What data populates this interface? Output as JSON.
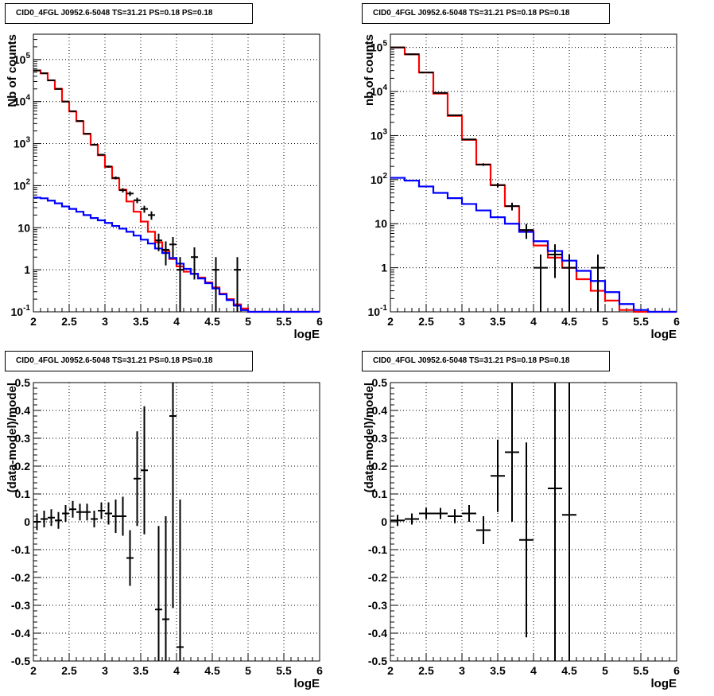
{
  "chart_data": [
    {
      "type": "line",
      "title": "CID0_4FGL J0952.6-5048 TS=31.21 PS=0.18 PS=0.18",
      "xlabel": "logE",
      "ylabel": "Nb of counts",
      "ylog": true,
      "xlim": [
        2,
        6
      ],
      "ylim": [
        0.1,
        400000
      ],
      "grid": true,
      "xticks": [
        "2",
        "2.5",
        "3",
        "3.5",
        "4",
        "4.5",
        "5",
        "5.5",
        "6"
      ],
      "yticks": [
        "10^-1",
        "1",
        "10",
        "10^2",
        "10^3",
        "10^4",
        "10^5"
      ],
      "colors": {
        "total_model": "#ff0000",
        "source_model": "#0000ff",
        "data": "#000000"
      },
      "series": [
        {
          "role": "total_model",
          "edges": [
            2.0,
            2.1,
            2.2,
            2.3,
            2.4,
            2.5,
            2.6,
            2.7,
            2.8,
            2.9,
            3.0,
            3.1,
            3.2,
            3.3,
            3.4,
            3.5,
            3.6,
            3.7,
            3.8,
            3.9,
            4.0,
            4.1,
            4.2,
            4.3,
            4.4,
            4.5,
            4.6,
            4.7,
            4.8,
            4.9,
            5.0,
            5.1,
            5.2,
            5.3,
            5.4,
            5.5,
            5.6,
            5.7,
            5.8,
            5.9,
            6.0
          ],
          "values": [
            55000,
            47000,
            32000,
            20000,
            10000,
            5800,
            3400,
            1700,
            940,
            530,
            280,
            150,
            80,
            42,
            24,
            14,
            8,
            4.5,
            2.8,
            1.8,
            1.2,
            0.9,
            0.8,
            0.65,
            0.5,
            0.38,
            0.27,
            0.2,
            0.15,
            0.12,
            0.1,
            0.1,
            0.1,
            0.1,
            0.1,
            0.1,
            0.1,
            0.1,
            0.1,
            0.1
          ]
        },
        {
          "role": "source_model",
          "edges": [
            2.0,
            2.1,
            2.2,
            2.3,
            2.4,
            2.5,
            2.6,
            2.7,
            2.8,
            2.9,
            3.0,
            3.1,
            3.2,
            3.3,
            3.4,
            3.5,
            3.6,
            3.7,
            3.8,
            3.9,
            4.0,
            4.1,
            4.2,
            4.3,
            4.4,
            4.5,
            4.6,
            4.7,
            4.8,
            4.9,
            5.0,
            5.1,
            5.2,
            5.3,
            5.4,
            5.5,
            5.6,
            5.7,
            5.8,
            5.9,
            6.0
          ],
          "values": [
            52,
            50,
            44,
            38,
            32,
            28,
            24,
            20,
            17,
            15,
            13,
            11,
            9.5,
            8,
            6.5,
            5.2,
            4.2,
            3.2,
            2.5,
            1.9,
            1.4,
            1.05,
            0.8,
            0.62,
            0.48,
            0.36,
            0.26,
            0.19,
            0.14,
            0.11,
            0.1,
            0.1,
            0.1,
            0.1,
            0.1,
            0.1,
            0.1,
            0.1,
            0.1,
            0.1
          ]
        }
      ],
      "points": {
        "x": [
          2.05,
          2.15,
          2.25,
          2.35,
          2.45,
          2.55,
          2.65,
          2.75,
          2.85,
          2.95,
          3.05,
          3.15,
          3.25,
          3.35,
          3.45,
          3.55,
          3.65,
          3.75,
          3.85,
          3.95,
          4.05,
          4.25,
          4.55,
          4.85
        ],
        "y": [
          55000,
          47000,
          32000,
          20000,
          10000,
          5900,
          3450,
          1720,
          940,
          545,
          285,
          153,
          78,
          65,
          45,
          28,
          20,
          5,
          3,
          4,
          1,
          2,
          1,
          1
        ],
        "xerr": 0.05
      }
    },
    {
      "type": "line",
      "title": "CID0_4FGL J0952.6-5048 TS=31.21 PS=0.18 PS=0.18",
      "xlabel": "logE",
      "ylabel": "nb of counts",
      "ylog": true,
      "xlim": [
        2,
        6
      ],
      "ylim": [
        0.1,
        200000
      ],
      "grid": true,
      "xticks": [
        "2",
        "2.5",
        "3",
        "3.5",
        "4",
        "4.5",
        "5",
        "5.5",
        "6"
      ],
      "yticks": [
        "10^-1",
        "1",
        "10",
        "10^2",
        "10^3",
        "10^4",
        "10^5"
      ],
      "colors": {
        "total_model": "#ff0000",
        "source_model": "#0000ff",
        "data": "#000000"
      },
      "series": [
        {
          "role": "total_model",
          "edges": [
            2.0,
            2.2,
            2.4,
            2.6,
            2.8,
            3.0,
            3.2,
            3.4,
            3.6,
            3.8,
            4.0,
            4.2,
            4.4,
            4.6,
            4.8,
            5.0,
            5.2,
            5.4,
            5.6,
            5.8,
            6.0
          ],
          "values": [
            100000,
            70000,
            27000,
            9000,
            2800,
            800,
            220,
            75,
            25,
            7,
            3.2,
            1.7,
            1.0,
            0.55,
            0.3,
            0.18,
            0.11,
            0.1,
            0.1,
            0.1
          ]
        },
        {
          "role": "source_model",
          "edges": [
            2.0,
            2.2,
            2.4,
            2.6,
            2.8,
            3.0,
            3.2,
            3.4,
            3.6,
            3.8,
            4.0,
            4.2,
            4.4,
            4.6,
            4.8,
            5.0,
            5.2,
            5.4,
            5.6,
            5.8,
            6.0
          ],
          "values": [
            110,
            95,
            70,
            50,
            38,
            28,
            20,
            14,
            10,
            6.5,
            4.0,
            2.4,
            1.45,
            0.85,
            0.5,
            0.28,
            0.15,
            0.11,
            0.1,
            0.1
          ]
        }
      ],
      "points": {
        "x": [
          2.1,
          2.3,
          2.5,
          2.7,
          2.9,
          3.1,
          3.3,
          3.5,
          3.7,
          3.9,
          4.1,
          4.3,
          4.5,
          4.9
        ],
        "y": [
          100000,
          70000,
          27000,
          9300,
          2900,
          820,
          220,
          75,
          25,
          7.2,
          1,
          2,
          1,
          1
        ],
        "xerr": 0.1
      }
    },
    {
      "type": "scatter",
      "title": "CID0_4FGL J0952.6-5048 TS=31.21 PS=0.18 PS=0.18",
      "xlabel": "logE",
      "ylabel": "(data-model)/model",
      "xlim": [
        2,
        6
      ],
      "ylim": [
        -0.5,
        0.5
      ],
      "grid": true,
      "xticks": [
        "2",
        "2.5",
        "3",
        "3.5",
        "4",
        "4.5",
        "5",
        "5.5",
        "6"
      ],
      "yticks": [
        "-0.5",
        "-0.4",
        "-0.3",
        "-0.2",
        "-0.1",
        "0",
        "0.1",
        "0.2",
        "0.3",
        "0.4",
        "0.5"
      ],
      "points": {
        "x": [
          2.05,
          2.15,
          2.25,
          2.35,
          2.45,
          2.55,
          2.65,
          2.75,
          2.85,
          2.95,
          3.05,
          3.15,
          3.25,
          3.35,
          3.45,
          3.55,
          3.75,
          3.85,
          3.95,
          4.05
        ],
        "y": [
          0.0,
          0.01,
          0.015,
          0.005,
          0.03,
          0.045,
          0.035,
          0.035,
          0.01,
          0.04,
          0.03,
          0.02,
          0.02,
          -0.13,
          0.155,
          0.185,
          -0.315,
          -0.35,
          0.38,
          -0.45
        ],
        "yerr": [
          0.03,
          0.03,
          0.03,
          0.03,
          0.03,
          0.03,
          0.03,
          0.03,
          0.03,
          0.03,
          0.04,
          0.06,
          0.07,
          0.1,
          0.17,
          0.23,
          0.3,
          0.37,
          0.69,
          0.53
        ],
        "xerr": 0.05
      }
    },
    {
      "type": "scatter",
      "title": "CID0_4FGL J0952.6-5048 TS=31.21 PS=0.18 PS=0.18",
      "xlabel": "logE",
      "ylabel": "(data-model)/model",
      "xlim": [
        2,
        6
      ],
      "ylim": [
        -0.5,
        0.5
      ],
      "grid": true,
      "xticks": [
        "2",
        "2.5",
        "3",
        "3.5",
        "4",
        "4.5",
        "5",
        "5.5",
        "6"
      ],
      "yticks": [
        "-0.5",
        "-0.4",
        "-0.3",
        "-0.2",
        "-0.1",
        "0",
        "0.1",
        "0.2",
        "0.3",
        "0.4",
        "0.5"
      ],
      "points": {
        "x": [
          2.1,
          2.3,
          2.5,
          2.7,
          2.9,
          3.1,
          3.3,
          3.5,
          3.7,
          3.9,
          4.3,
          4.5
        ],
        "y": [
          0.005,
          0.01,
          0.03,
          0.03,
          0.02,
          0.03,
          -0.03,
          0.165,
          0.25,
          -0.065,
          0.12,
          0.025
        ],
        "yerr": [
          0.02,
          0.02,
          0.02,
          0.02,
          0.025,
          0.03,
          0.05,
          0.13,
          0.25,
          0.35,
          0.65,
          0.55
        ],
        "xerr": 0.1
      }
    }
  ]
}
